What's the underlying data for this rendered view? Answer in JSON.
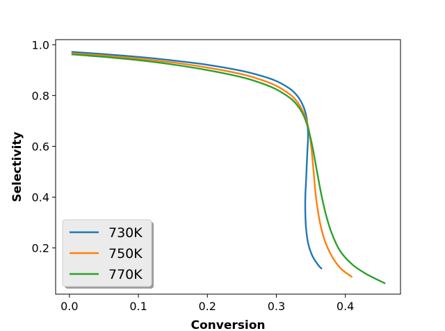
{
  "chart_data": {
    "type": "line",
    "title": "",
    "xlabel": "Conversion",
    "ylabel": "Selectivity",
    "xlim": [
      -0.02,
      0.48
    ],
    "ylim": [
      0.018,
      1.02
    ],
    "xticks": [
      0.0,
      0.1,
      0.2,
      0.3,
      0.4
    ],
    "xtick_labels": [
      "0.0",
      "0.1",
      "0.2",
      "0.3",
      "0.4"
    ],
    "yticks": [
      0.2,
      0.4,
      0.6,
      0.8,
      1.0
    ],
    "ytick_labels": [
      "0.2",
      "0.4",
      "0.6",
      "0.8",
      "1.0"
    ],
    "grid": false,
    "legend_position": "lower-left",
    "series": [
      {
        "name": "730K",
        "color": "#1f77b4",
        "points": [
          [
            0.003,
            0.972
          ],
          [
            0.05,
            0.963
          ],
          [
            0.1,
            0.952
          ],
          [
            0.15,
            0.938
          ],
          [
            0.2,
            0.921
          ],
          [
            0.25,
            0.897
          ],
          [
            0.28,
            0.876
          ],
          [
            0.3,
            0.857
          ],
          [
            0.32,
            0.826
          ],
          [
            0.33,
            0.8
          ],
          [
            0.337,
            0.77
          ],
          [
            0.342,
            0.735
          ],
          [
            0.345,
            0.69
          ],
          [
            0.346,
            0.64
          ],
          [
            0.345,
            0.58
          ],
          [
            0.344,
            0.52
          ],
          [
            0.343,
            0.46
          ],
          [
            0.342,
            0.4
          ],
          [
            0.342,
            0.34
          ],
          [
            0.343,
            0.28
          ],
          [
            0.346,
            0.22
          ],
          [
            0.352,
            0.17
          ],
          [
            0.36,
            0.135
          ],
          [
            0.366,
            0.117
          ]
        ]
      },
      {
        "name": "750K",
        "color": "#ff7f0e",
        "points": [
          [
            0.003,
            0.966
          ],
          [
            0.05,
            0.957
          ],
          [
            0.1,
            0.945
          ],
          [
            0.15,
            0.93
          ],
          [
            0.2,
            0.91
          ],
          [
            0.25,
            0.884
          ],
          [
            0.28,
            0.86
          ],
          [
            0.3,
            0.838
          ],
          [
            0.32,
            0.804
          ],
          [
            0.33,
            0.776
          ],
          [
            0.338,
            0.74
          ],
          [
            0.344,
            0.7
          ],
          [
            0.348,
            0.65
          ],
          [
            0.351,
            0.59
          ],
          [
            0.353,
            0.53
          ],
          [
            0.355,
            0.47
          ],
          [
            0.357,
            0.41
          ],
          [
            0.36,
            0.35
          ],
          [
            0.364,
            0.29
          ],
          [
            0.37,
            0.23
          ],
          [
            0.38,
            0.17
          ],
          [
            0.393,
            0.12
          ],
          [
            0.41,
            0.085
          ]
        ]
      },
      {
        "name": "770K",
        "color": "#2ca02c",
        "points": [
          [
            0.003,
            0.962
          ],
          [
            0.05,
            0.952
          ],
          [
            0.1,
            0.939
          ],
          [
            0.15,
            0.922
          ],
          [
            0.2,
            0.9
          ],
          [
            0.25,
            0.872
          ],
          [
            0.28,
            0.847
          ],
          [
            0.3,
            0.824
          ],
          [
            0.32,
            0.79
          ],
          [
            0.33,
            0.763
          ],
          [
            0.338,
            0.73
          ],
          [
            0.344,
            0.69
          ],
          [
            0.349,
            0.64
          ],
          [
            0.353,
            0.59
          ],
          [
            0.357,
            0.53
          ],
          [
            0.361,
            0.47
          ],
          [
            0.366,
            0.4
          ],
          [
            0.372,
            0.33
          ],
          [
            0.38,
            0.26
          ],
          [
            0.392,
            0.19
          ],
          [
            0.41,
            0.135
          ],
          [
            0.43,
            0.098
          ],
          [
            0.458,
            0.06
          ]
        ]
      }
    ]
  }
}
